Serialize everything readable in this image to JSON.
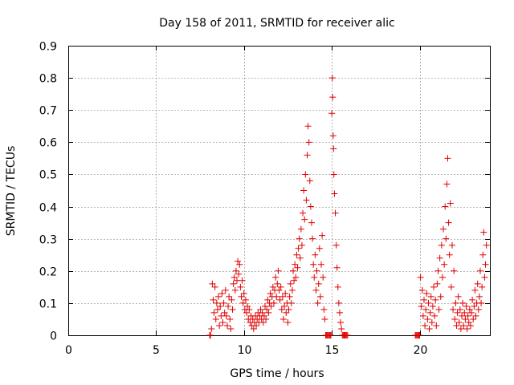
{
  "chart_data": {
    "type": "scatter",
    "title": "Day 158 of 2011, SRMTID for receiver alic",
    "xlabel": "GPS time / hours",
    "ylabel": "SRMTID / TECUs",
    "xlim": [
      0,
      24
    ],
    "ylim": [
      0,
      0.9
    ],
    "xticks": [
      "0",
      "5",
      "10",
      "15",
      "20"
    ],
    "yticks": [
      "0",
      "0.1",
      "0.2",
      "0.3",
      "0.4",
      "0.5",
      "0.6",
      "0.7",
      "0.8",
      "0.9"
    ],
    "grid": true,
    "marker": "+",
    "color": "#e00000",
    "series": [
      {
        "name": "SRMTID",
        "points": [
          [
            8.05,
            0.0
          ],
          [
            8.1,
            0.0
          ],
          [
            8.15,
            0.02
          ],
          [
            8.2,
            0.16
          ],
          [
            8.25,
            0.11
          ],
          [
            8.3,
            0.07
          ],
          [
            8.35,
            0.15
          ],
          [
            8.4,
            0.05
          ],
          [
            8.45,
            0.1
          ],
          [
            8.5,
            0.08
          ],
          [
            8.55,
            0.12
          ],
          [
            8.6,
            0.03
          ],
          [
            8.65,
            0.09
          ],
          [
            8.7,
            0.06
          ],
          [
            8.75,
            0.13
          ],
          [
            8.8,
            0.04
          ],
          [
            8.85,
            0.1
          ],
          [
            8.9,
            0.07
          ],
          [
            8.95,
            0.14
          ],
          [
            9.0,
            0.06
          ],
          [
            9.05,
            0.03
          ],
          [
            9.1,
            0.09
          ],
          [
            9.15,
            0.12
          ],
          [
            9.2,
            0.05
          ],
          [
            9.25,
            0.02
          ],
          [
            9.3,
            0.11
          ],
          [
            9.35,
            0.08
          ],
          [
            9.4,
            0.16
          ],
          [
            9.45,
            0.18
          ],
          [
            9.5,
            0.14
          ],
          [
            9.55,
            0.2
          ],
          [
            9.6,
            0.17
          ],
          [
            9.65,
            0.23
          ],
          [
            9.7,
            0.19
          ],
          [
            9.75,
            0.22
          ],
          [
            9.8,
            0.15
          ],
          [
            9.85,
            0.12
          ],
          [
            9.9,
            0.17
          ],
          [
            9.95,
            0.1
          ],
          [
            10.0,
            0.13
          ],
          [
            10.05,
            0.08
          ],
          [
            10.1,
            0.11
          ],
          [
            10.15,
            0.07
          ],
          [
            10.2,
            0.09
          ],
          [
            10.25,
            0.05
          ],
          [
            10.3,
            0.08
          ],
          [
            10.35,
            0.04
          ],
          [
            10.4,
            0.06
          ],
          [
            10.45,
            0.03
          ],
          [
            10.5,
            0.05
          ],
          [
            10.55,
            0.02
          ],
          [
            10.6,
            0.04
          ],
          [
            10.65,
            0.06
          ],
          [
            10.7,
            0.03
          ],
          [
            10.75,
            0.05
          ],
          [
            10.8,
            0.07
          ],
          [
            10.85,
            0.04
          ],
          [
            10.9,
            0.06
          ],
          [
            10.95,
            0.08
          ],
          [
            11.0,
            0.05
          ],
          [
            11.05,
            0.07
          ],
          [
            11.1,
            0.04
          ],
          [
            11.15,
            0.06
          ],
          [
            11.2,
            0.09
          ],
          [
            11.25,
            0.05
          ],
          [
            11.3,
            0.08
          ],
          [
            11.35,
            0.11
          ],
          [
            11.4,
            0.07
          ],
          [
            11.45,
            0.1
          ],
          [
            11.5,
            0.13
          ],
          [
            11.55,
            0.09
          ],
          [
            11.6,
            0.12
          ],
          [
            11.65,
            0.15
          ],
          [
            11.7,
            0.1
          ],
          [
            11.75,
            0.14
          ],
          [
            11.8,
            0.18
          ],
          [
            11.85,
            0.12
          ],
          [
            11.9,
            0.16
          ],
          [
            11.95,
            0.2
          ],
          [
            12.0,
            0.14
          ],
          [
            12.05,
            0.11
          ],
          [
            12.1,
            0.15
          ],
          [
            12.15,
            0.08
          ],
          [
            12.2,
            0.12
          ],
          [
            12.25,
            0.05
          ],
          [
            12.3,
            0.09
          ],
          [
            12.35,
            0.13
          ],
          [
            12.4,
            0.07
          ],
          [
            12.45,
            0.1
          ],
          [
            12.5,
            0.04
          ],
          [
            12.55,
            0.08
          ],
          [
            12.6,
            0.12
          ],
          [
            12.65,
            0.16
          ],
          [
            12.7,
            0.1
          ],
          [
            12.75,
            0.14
          ],
          [
            12.8,
            0.2
          ],
          [
            12.85,
            0.17
          ],
          [
            12.9,
            0.22
          ],
          [
            12.95,
            0.18
          ],
          [
            13.0,
            0.25
          ],
          [
            13.05,
            0.21
          ],
          [
            13.1,
            0.27
          ],
          [
            13.15,
            0.3
          ],
          [
            13.2,
            0.24
          ],
          [
            13.25,
            0.33
          ],
          [
            13.3,
            0.28
          ],
          [
            13.35,
            0.38
          ],
          [
            13.4,
            0.45
          ],
          [
            13.45,
            0.36
          ],
          [
            13.5,
            0.5
          ],
          [
            13.55,
            0.42
          ],
          [
            13.6,
            0.56
          ],
          [
            13.65,
            0.65
          ],
          [
            13.7,
            0.6
          ],
          [
            13.75,
            0.48
          ],
          [
            13.8,
            0.4
          ],
          [
            13.85,
            0.35
          ],
          [
            13.9,
            0.3
          ],
          [
            13.95,
            0.22
          ],
          [
            14.0,
            0.18
          ],
          [
            14.05,
            0.25
          ],
          [
            14.1,
            0.14
          ],
          [
            14.15,
            0.2
          ],
          [
            14.2,
            0.1
          ],
          [
            14.25,
            0.16
          ],
          [
            14.3,
            0.27
          ],
          [
            14.35,
            0.12
          ],
          [
            14.4,
            0.22
          ],
          [
            14.45,
            0.31
          ],
          [
            14.5,
            0.18
          ],
          [
            14.55,
            0.08
          ],
          [
            14.6,
            0.05
          ],
          [
            14.65,
            0.0
          ],
          [
            14.7,
            0.0
          ],
          [
            14.75,
            0.0
          ],
          [
            14.8,
            0.0
          ],
          [
            14.85,
            0.0
          ],
          [
            14.9,
            0.0
          ],
          [
            14.95,
            0.0
          ],
          [
            15.0,
            0.69
          ],
          [
            15.03,
            0.8
          ],
          [
            15.05,
            0.74
          ],
          [
            15.08,
            0.62
          ],
          [
            15.1,
            0.58
          ],
          [
            15.12,
            0.5
          ],
          [
            15.15,
            0.44
          ],
          [
            15.2,
            0.38
          ],
          [
            15.25,
            0.28
          ],
          [
            15.3,
            0.21
          ],
          [
            15.35,
            0.15
          ],
          [
            15.4,
            0.1
          ],
          [
            15.45,
            0.07
          ],
          [
            15.5,
            0.04
          ],
          [
            15.55,
            0.02
          ],
          [
            15.6,
            0.0
          ],
          [
            15.65,
            0.0
          ],
          [
            15.7,
            0.0
          ],
          [
            15.75,
            0.0
          ],
          [
            15.8,
            0.0
          ],
          [
            15.85,
            0.0
          ],
          [
            15.9,
            0.0
          ],
          [
            19.75,
            0.0
          ],
          [
            19.8,
            0.0
          ],
          [
            19.85,
            0.0
          ],
          [
            19.9,
            0.0
          ],
          [
            19.95,
            0.0
          ],
          [
            20.0,
            0.0
          ],
          [
            20.05,
            0.18
          ],
          [
            20.1,
            0.09
          ],
          [
            20.15,
            0.14
          ],
          [
            20.2,
            0.06
          ],
          [
            20.25,
            0.11
          ],
          [
            20.3,
            0.03
          ],
          [
            20.35,
            0.08
          ],
          [
            20.4,
            0.13
          ],
          [
            20.45,
            0.05
          ],
          [
            20.5,
            0.1
          ],
          [
            20.55,
            0.02
          ],
          [
            20.6,
            0.07
          ],
          [
            20.65,
            0.12
          ],
          [
            20.7,
            0.04
          ],
          [
            20.75,
            0.09
          ],
          [
            20.8,
            0.15
          ],
          [
            20.85,
            0.06
          ],
          [
            20.9,
            0.11
          ],
          [
            20.95,
            0.03
          ],
          [
            21.0,
            0.16
          ],
          [
            21.05,
            0.2
          ],
          [
            21.1,
            0.08
          ],
          [
            21.15,
            0.24
          ],
          [
            21.2,
            0.12
          ],
          [
            21.25,
            0.28
          ],
          [
            21.3,
            0.18
          ],
          [
            21.35,
            0.33
          ],
          [
            21.4,
            0.22
          ],
          [
            21.45,
            0.4
          ],
          [
            21.5,
            0.3
          ],
          [
            21.55,
            0.47
          ],
          [
            21.6,
            0.55
          ],
          [
            21.65,
            0.35
          ],
          [
            21.7,
            0.25
          ],
          [
            21.75,
            0.41
          ],
          [
            21.8,
            0.15
          ],
          [
            21.85,
            0.28
          ],
          [
            21.9,
            0.08
          ],
          [
            21.95,
            0.2
          ],
          [
            22.0,
            0.05
          ],
          [
            22.05,
            0.1
          ],
          [
            22.1,
            0.03
          ],
          [
            22.15,
            0.07
          ],
          [
            22.2,
            0.12
          ],
          [
            22.25,
            0.04
          ],
          [
            22.3,
            0.08
          ],
          [
            22.35,
            0.02
          ],
          [
            22.4,
            0.06
          ],
          [
            22.45,
            0.1
          ],
          [
            22.5,
            0.03
          ],
          [
            22.55,
            0.07
          ],
          [
            22.6,
            0.05
          ],
          [
            22.65,
            0.09
          ],
          [
            22.7,
            0.02
          ],
          [
            22.75,
            0.06
          ],
          [
            22.8,
            0.04
          ],
          [
            22.85,
            0.08
          ],
          [
            22.9,
            0.03
          ],
          [
            22.95,
            0.07
          ],
          [
            23.0,
            0.11
          ],
          [
            23.05,
            0.05
          ],
          [
            23.1,
            0.09
          ],
          [
            23.15,
            0.14
          ],
          [
            23.2,
            0.06
          ],
          [
            23.25,
            0.1
          ],
          [
            23.3,
            0.16
          ],
          [
            23.35,
            0.08
          ],
          [
            23.4,
            0.12
          ],
          [
            23.45,
            0.2
          ],
          [
            23.5,
            0.1
          ],
          [
            23.55,
            0.15
          ],
          [
            23.6,
            0.25
          ],
          [
            23.65,
            0.32
          ],
          [
            23.7,
            0.18
          ],
          [
            23.75,
            0.22
          ],
          [
            23.8,
            0.28
          ]
        ]
      }
    ]
  }
}
